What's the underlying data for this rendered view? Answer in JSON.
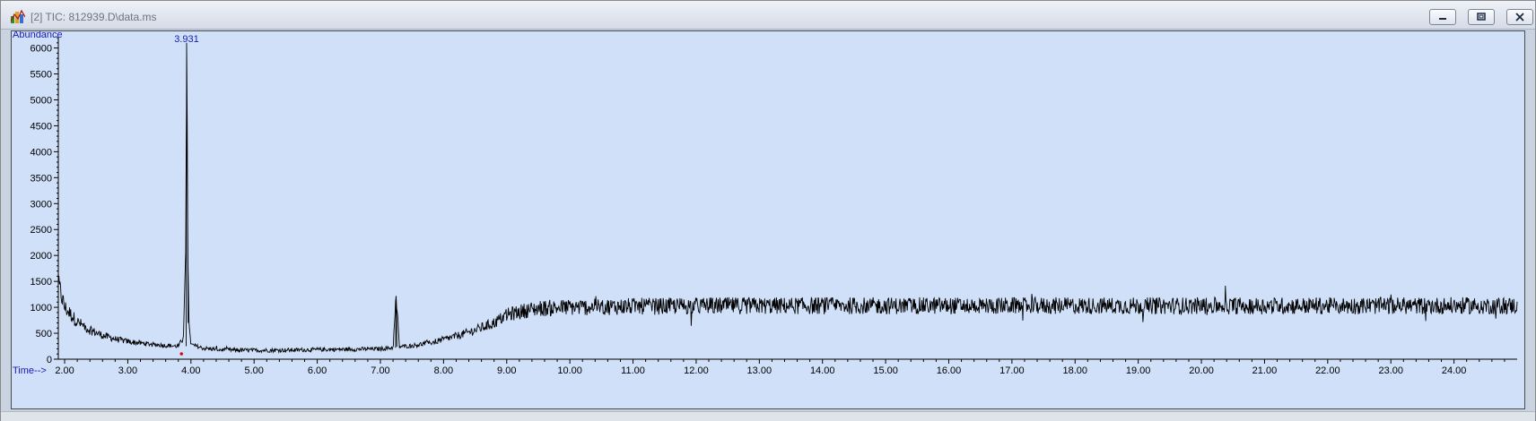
{
  "window": {
    "title": "[2] TIC: 812939.D\\data.ms",
    "icon": "chromatogram-app-icon",
    "controls": [
      "minimize-icon",
      "restore-icon",
      "close-icon"
    ]
  },
  "colors": {
    "plot_background": "#cfe0f8",
    "trace": "#000000",
    "axis_label": "#1a1ab5",
    "peak_label": "#1a1ab5",
    "marker": "#d01010"
  },
  "chart_data": {
    "type": "line",
    "title": "",
    "xlabel": "Time-->",
    "ylabel": "Abundance",
    "xlim": [
      1.9,
      25.0
    ],
    "ylim": [
      0,
      6200
    ],
    "x_ticks": [
      2.0,
      3.0,
      4.0,
      5.0,
      6.0,
      7.0,
      8.0,
      9.0,
      10.0,
      11.0,
      12.0,
      13.0,
      14.0,
      15.0,
      16.0,
      17.0,
      18.0,
      19.0,
      20.0,
      21.0,
      22.0,
      23.0,
      24.0
    ],
    "x_tick_labels": [
      "2.00",
      "3.00",
      "4.00",
      "5.00",
      "6.00",
      "7.00",
      "8.00",
      "9.00",
      "10.00",
      "11.00",
      "12.00",
      "13.00",
      "14.00",
      "15.00",
      "16.00",
      "17.00",
      "18.00",
      "19.00",
      "20.00",
      "21.00",
      "22.00",
      "23.00",
      "24.00"
    ],
    "y_ticks": [
      0,
      500,
      1000,
      1500,
      2000,
      2500,
      3000,
      3500,
      4000,
      4500,
      5000,
      5500,
      6000
    ],
    "y_tick_labels": [
      "0",
      "500",
      "1000",
      "1500",
      "2000",
      "2500",
      "3000",
      "3500",
      "4000",
      "4500",
      "5000",
      "5500",
      "6000"
    ],
    "grid": false,
    "legend": "none",
    "series": [
      {
        "x": [
          1.9,
          2.0,
          2.2,
          2.4,
          2.6,
          2.8,
          3.0,
          3.2,
          3.4,
          3.6,
          3.8,
          3.88,
          3.92,
          3.931,
          3.94,
          3.95,
          3.97,
          4.0,
          4.2,
          4.5,
          5.0,
          5.5,
          6.0,
          6.5,
          7.0,
          7.2,
          7.25,
          7.3,
          7.5,
          7.8,
          8.0,
          8.3,
          8.5,
          8.8,
          9.0,
          9.3,
          9.5,
          10.0,
          10.5,
          11.0,
          11.5,
          12.0,
          12.5,
          13.0,
          13.5,
          14.0,
          14.5,
          15.0,
          15.5,
          16.0,
          16.5,
          17.0,
          17.5,
          18.0,
          18.5,
          19.0,
          19.5,
          20.0,
          20.5,
          21.0,
          21.5,
          22.0,
          22.5,
          23.0,
          23.5,
          24.0,
          24.5,
          25.0
        ],
        "y": [
          1450,
          1000,
          720,
          560,
          460,
          390,
          340,
          310,
          285,
          265,
          250,
          400,
          2200,
          6100,
          4500,
          2000,
          700,
          280,
          210,
          180,
          170,
          175,
          185,
          190,
          200,
          220,
          1200,
          240,
          260,
          320,
          380,
          480,
          560,
          700,
          850,
          940,
          980,
          1000,
          1010,
          1020,
          1020,
          1030,
          1030,
          1030,
          1030,
          1030,
          1030,
          1030,
          1030,
          1030,
          1030,
          1030,
          1030,
          1030,
          1030,
          1030,
          1030,
          1030,
          1030,
          1030,
          1030,
          1030,
          1030,
          1030,
          1030,
          1030,
          1030,
          1030
        ]
      }
    ],
    "annotations": [
      {
        "text": "3.931",
        "x": 3.931,
        "y": 6100
      }
    ],
    "markers": [
      {
        "x": 3.85,
        "y": 0
      }
    ]
  }
}
